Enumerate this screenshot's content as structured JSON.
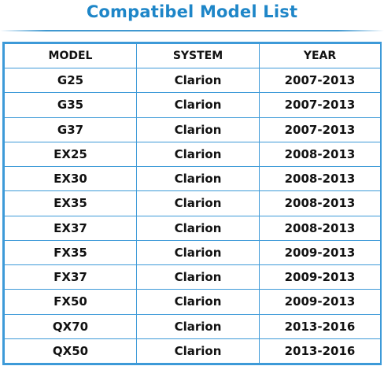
{
  "title": "Compatibel Model List",
  "colors": {
    "title": "#1e86c8",
    "border": "#3d9ad8",
    "text": "#111111"
  },
  "table": {
    "headers": [
      "MODEL",
      "SYSTEM",
      "YEAR"
    ],
    "rows": [
      [
        "G25",
        "Clarion",
        "2007-2013"
      ],
      [
        "G35",
        "Clarion",
        "2007-2013"
      ],
      [
        "G37",
        "Clarion",
        "2007-2013"
      ],
      [
        "EX25",
        "Clarion",
        "2008-2013"
      ],
      [
        "EX30",
        "Clarion",
        "2008-2013"
      ],
      [
        "EX35",
        "Clarion",
        "2008-2013"
      ],
      [
        "EX37",
        "Clarion",
        "2008-2013"
      ],
      [
        "FX35",
        "Clarion",
        "2009-2013"
      ],
      [
        "FX37",
        "Clarion",
        "2009-2013"
      ],
      [
        "FX50",
        "Clarion",
        "2009-2013"
      ],
      [
        "QX70",
        "Clarion",
        "2013-2016"
      ],
      [
        "QX50",
        "Clarion",
        "2013-2016"
      ]
    ]
  }
}
